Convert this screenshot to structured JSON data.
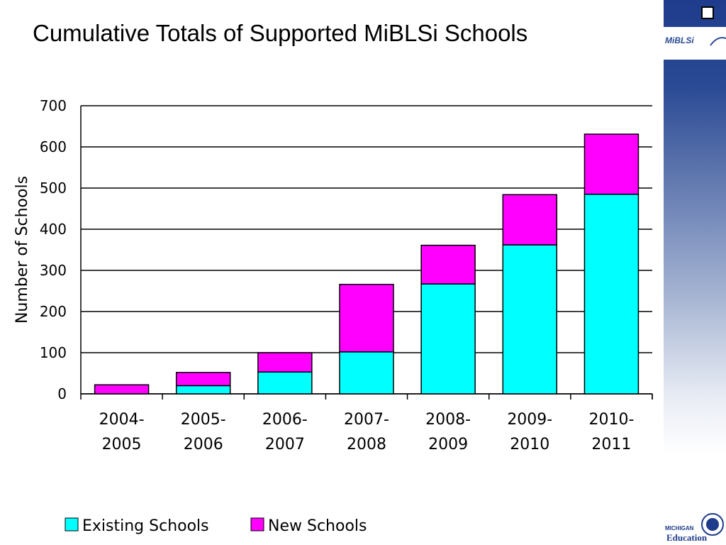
{
  "title": "Cumulative Totals of Supported MiBLSi Schools",
  "logo": {
    "text": "MiBLSi",
    "education_small": "MICHIGAN",
    "education_big": "Education"
  },
  "colors": {
    "existing": "#00ffff",
    "new": "#ff00ff",
    "sidebar": "#1f3c8c"
  },
  "chart_data": {
    "type": "bar",
    "stacked": true,
    "categories": [
      [
        "2004-",
        "2005"
      ],
      [
        "2005-",
        "2006"
      ],
      [
        "2006-",
        "2007"
      ],
      [
        "2007-",
        "2008"
      ],
      [
        "2008-",
        "2009"
      ],
      [
        "2009-",
        "2010"
      ],
      [
        "2010-",
        "2011"
      ]
    ],
    "series": [
      {
        "name": "Existing Schools",
        "values": [
          0,
          20,
          53,
          102,
          267,
          362,
          485
        ]
      },
      {
        "name": "New Schools",
        "values": [
          22,
          32,
          47,
          164,
          94,
          122,
          146
        ]
      }
    ],
    "ylabel": "Number of Schools",
    "ylim": [
      0,
      700
    ],
    "yticks": [
      0,
      100,
      200,
      300,
      400,
      500,
      600,
      700
    ],
    "grid": true,
    "legend": "bottom"
  }
}
